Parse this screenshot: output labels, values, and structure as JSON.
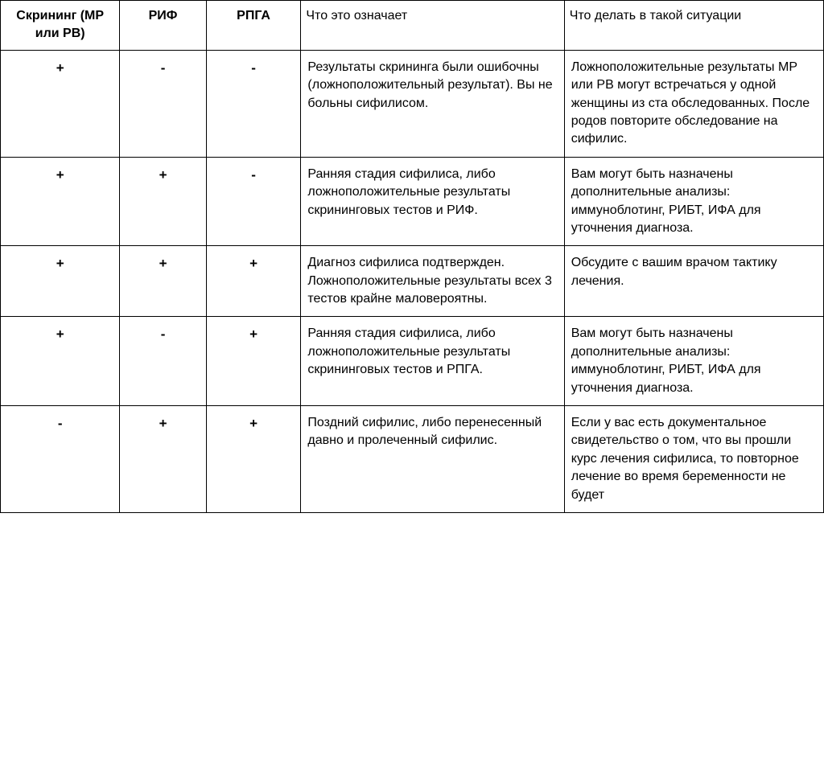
{
  "table": {
    "headers": {
      "screening": "Скрининг (МР или РВ)",
      "rif": "РИФ",
      "rpga": "РПГА",
      "meaning": "Что это означает",
      "action": "Что делать в такой ситуации"
    },
    "rows": [
      {
        "screening": "+",
        "rif": "-",
        "rpga": "-",
        "meaning": "Результаты скрининга были ошибочны (ложноположительный результат). Вы не больны сифилисом.",
        "action": "Ложноположительные результаты МР или РВ могут встречаться у одной женщины из ста обследованных. После родов повторите обследование на сифилис."
      },
      {
        "screening": "+",
        "rif": "+",
        "rpga": "-",
        "meaning": "Ранняя стадия сифилиса, либо ложноположительные результаты скрининговых тестов и РИФ.",
        "action": "Вам могут быть назначены дополнительные анализы: иммуноблотинг, РИБТ, ИФА для уточнения диагноза."
      },
      {
        "screening": "+",
        "rif": "+",
        "rpga": "+",
        "meaning": "Диагноз сифилиса подтвержден. Ложноположительные результаты всех 3 тестов крайне маловероятны.",
        "action": "Обсудите с вашим врачом тактику лечения."
      },
      {
        "screening": "+",
        "rif": "-",
        "rpga": "+",
        "meaning": "Ранняя стадия сифилиса, либо ложноположительные результаты скрининговых тестов и РПГА.",
        "action": "Вам могут быть назначены дополнительные анализы: иммуноблотинг, РИБТ, ИФА для уточнения диагноза."
      },
      {
        "screening": "-",
        "rif": "+",
        "rpga": "+",
        "meaning": "Поздний сифилис, либо перенесенный давно и пролеченный сифилис.",
        "action": "Если у вас есть документальное свидетельство о том, что вы прошли курс лечения сифилиса, то повторное лечение  во время беременности не будет"
      }
    ],
    "styling": {
      "border_color": "#000000",
      "background_color": "#ffffff",
      "text_color": "#000000",
      "header_fontweight": "bold",
      "body_fontsize": 16,
      "font_family": "Arial, sans-serif",
      "column_widths_percent": [
        14.5,
        10.5,
        11.5,
        32,
        31.5
      ],
      "result_cell_align": "center",
      "text_cell_align": "left",
      "vertical_align": "top"
    }
  }
}
